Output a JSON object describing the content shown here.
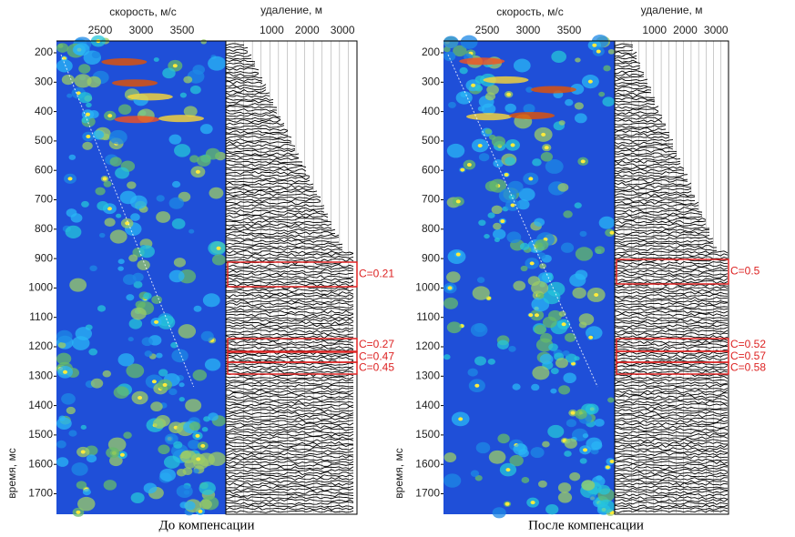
{
  "panels": [
    {
      "caption": "До компенсации",
      "velocity_axis_label": "скорость, м/с",
      "velocity_ticks": [
        "2500",
        "3000",
        "3500"
      ],
      "offset_axis_label": "удаление, м",
      "offset_ticks": [
        "1000",
        "2000",
        "3000"
      ],
      "time_axis_label": "время, мс",
      "time_ticks": [
        "200",
        "300",
        "400",
        "500",
        "600",
        "700",
        "800",
        "900",
        "1000",
        "1100",
        "1200",
        "1300",
        "1400",
        "1500",
        "1600",
        "1700"
      ],
      "windows": [
        "C=0.21",
        "C=0.27",
        "C=0.47",
        "C=0.45"
      ]
    },
    {
      "caption": "После компенсации",
      "velocity_axis_label": "скорость, м/с",
      "velocity_ticks": [
        "2500",
        "3000",
        "3500"
      ],
      "offset_axis_label": "удаление, м",
      "offset_ticks": [
        "1000",
        "2000",
        "3000"
      ],
      "time_axis_label": "время, мс",
      "time_ticks": [
        "200",
        "300",
        "400",
        "500",
        "600",
        "700",
        "800",
        "900",
        "1000",
        "1100",
        "1200",
        "1300",
        "1400",
        "1500",
        "1600",
        "1700"
      ],
      "windows": [
        "C=0.5",
        "C=0.52",
        "C=0.57",
        "C=0.58"
      ]
    }
  ]
}
